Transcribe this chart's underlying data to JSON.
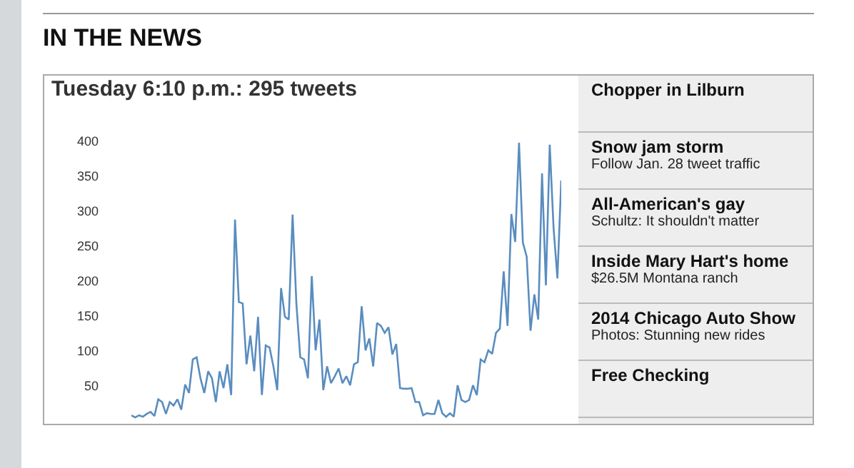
{
  "chart_data": {
    "type": "line",
    "title": "IN THE NEWS",
    "subtitle": "Tuesday 6:10 p.m.: 295 tweets",
    "categories": [
      null,
      null,
      null,
      null,
      null,
      null,
      null,
      null,
      null,
      null,
      null,
      null,
      null,
      null,
      null,
      null,
      null,
      null,
      null,
      null,
      null,
      null,
      null,
      null,
      null,
      null,
      null,
      null,
      null,
      null,
      null,
      null,
      null,
      null,
      null,
      null,
      null,
      null,
      null,
      null,
      null,
      null,
      null,
      null,
      null,
      null,
      null,
      null,
      null,
      null,
      null,
      null,
      null,
      null,
      null,
      null,
      null,
      null,
      null,
      null,
      null,
      null,
      null,
      null,
      null,
      null,
      null,
      null,
      null,
      null,
      null,
      null,
      null,
      null,
      null,
      null,
      null,
      null,
      null,
      null,
      null,
      null,
      null,
      null,
      null,
      null,
      null,
      null,
      null,
      null,
      null,
      null,
      null,
      null,
      null,
      null,
      null,
      null,
      null,
      null,
      null,
      null,
      null,
      null,
      null,
      null,
      null,
      null,
      null,
      null,
      null,
      null,
      null
    ],
    "series": [
      {
        "color": "#5a8dbf",
        "values": [
          8,
          5,
          8,
          6,
          10,
          13,
          7,
          31,
          27,
          10,
          27,
          22,
          31,
          16,
          52,
          40,
          88,
          91,
          61,
          40,
          71,
          61,
          27,
          71,
          47,
          81,
          37,
          288,
          170,
          168,
          81,
          122,
          71,
          149,
          37,
          108,
          105,
          78,
          44,
          190,
          149,
          145,
          295,
          167,
          91,
          88,
          61,
          207,
          101,
          145,
          44,
          78,
          54,
          64,
          75,
          54,
          64,
          51,
          81,
          84,
          164,
          101,
          118,
          78,
          140,
          136,
          126,
          134,
          95,
          110,
          47,
          46,
          46,
          47,
          27,
          27,
          8,
          11,
          10,
          10,
          30,
          11,
          6,
          11,
          6,
          51,
          30,
          27,
          30,
          51,
          37,
          88,
          84,
          101,
          96,
          126,
          132,
          214,
          136,
          296,
          256,
          398,
          255,
          235,
          129,
          181,
          145,
          354,
          194,
          395,
          276,
          204,
          344
        ]
      }
    ],
    "ylim": [
      0,
      400
    ],
    "yticks": [
      50,
      100,
      150,
      200,
      250,
      300,
      350,
      400
    ],
    "tick_labels": "y",
    "grid": false,
    "marker": "none",
    "line_style": "solid",
    "annotations": [
      "Chopper in Lilburn",
      "Snow jam storm\nFollow Jan. 28 tweet traffic",
      "All-American's gay\nSchultz: It shouldn't matter",
      "Inside Mary Hart's home\n$26.5M Montana ranch",
      "2014 Chicago Auto Show\nPhotos: Stunning new rides",
      "Free Checking"
    ]
  }
}
